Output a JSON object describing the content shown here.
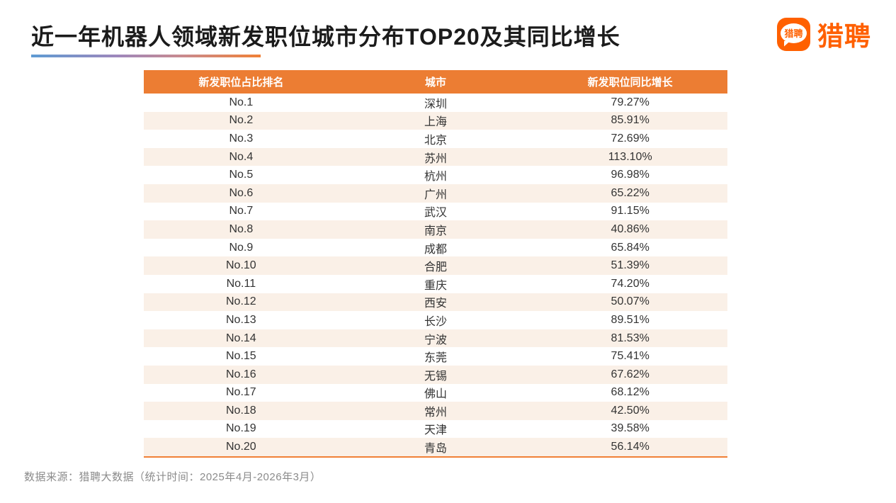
{
  "page": {
    "title": "近一年机器人领域新发职位城市分布TOP20及其同比增长",
    "source_note": "数据来源：猎聘大数据（统计时间：2025年4月-2026年3月）"
  },
  "brand": {
    "name": "猎聘",
    "badge_text": "猎聘",
    "orange": "#ff6000"
  },
  "colors": {
    "table_header_bg": "#ec7d33",
    "table_header_text": "#ffffff",
    "row_alt_bg": "#faf0e7",
    "table_bottom_border": "#f08036",
    "underline_gradient_start": "#5e9bd3",
    "underline_gradient_end": "#f08036",
    "title_text": "#1b1b1b",
    "source_text": "#8b8b8b"
  },
  "chart_data": {
    "type": "table",
    "title": "近一年机器人领域新发职位城市分布TOP20及其同比增长",
    "columns": [
      "新发职位占比排名",
      "城市",
      "新发职位同比增长"
    ],
    "rows": [
      {
        "rank": "No.1",
        "city": "深圳",
        "growth": "79.27%"
      },
      {
        "rank": "No.2",
        "city": "上海",
        "growth": "85.91%"
      },
      {
        "rank": "No.3",
        "city": "北京",
        "growth": "72.69%"
      },
      {
        "rank": "No.4",
        "city": "苏州",
        "growth": "113.10%"
      },
      {
        "rank": "No.5",
        "city": "杭州",
        "growth": "96.98%"
      },
      {
        "rank": "No.6",
        "city": "广州",
        "growth": "65.22%"
      },
      {
        "rank": "No.7",
        "city": "武汉",
        "growth": "91.15%"
      },
      {
        "rank": "No.8",
        "city": "南京",
        "growth": "40.86%"
      },
      {
        "rank": "No.9",
        "city": "成都",
        "growth": "65.84%"
      },
      {
        "rank": "No.10",
        "city": "合肥",
        "growth": "51.39%"
      },
      {
        "rank": "No.11",
        "city": "重庆",
        "growth": "74.20%"
      },
      {
        "rank": "No.12",
        "city": "西安",
        "growth": "50.07%"
      },
      {
        "rank": "No.13",
        "city": "长沙",
        "growth": "89.51%"
      },
      {
        "rank": "No.14",
        "city": "宁波",
        "growth": "81.53%"
      },
      {
        "rank": "No.15",
        "city": "东莞",
        "growth": "75.41%"
      },
      {
        "rank": "No.16",
        "city": "无锡",
        "growth": "67.62%"
      },
      {
        "rank": "No.17",
        "city": "佛山",
        "growth": "68.12%"
      },
      {
        "rank": "No.18",
        "city": "常州",
        "growth": "42.50%"
      },
      {
        "rank": "No.19",
        "city": "天津",
        "growth": "39.58%"
      },
      {
        "rank": "No.20",
        "city": "青岛",
        "growth": "56.14%"
      }
    ],
    "growth_values_pct": [
      79.27,
      85.91,
      72.69,
      113.1,
      96.98,
      65.22,
      91.15,
      40.86,
      65.84,
      51.39,
      74.2,
      50.07,
      89.51,
      81.53,
      75.41,
      67.62,
      68.12,
      42.5,
      39.58,
      56.14
    ]
  }
}
